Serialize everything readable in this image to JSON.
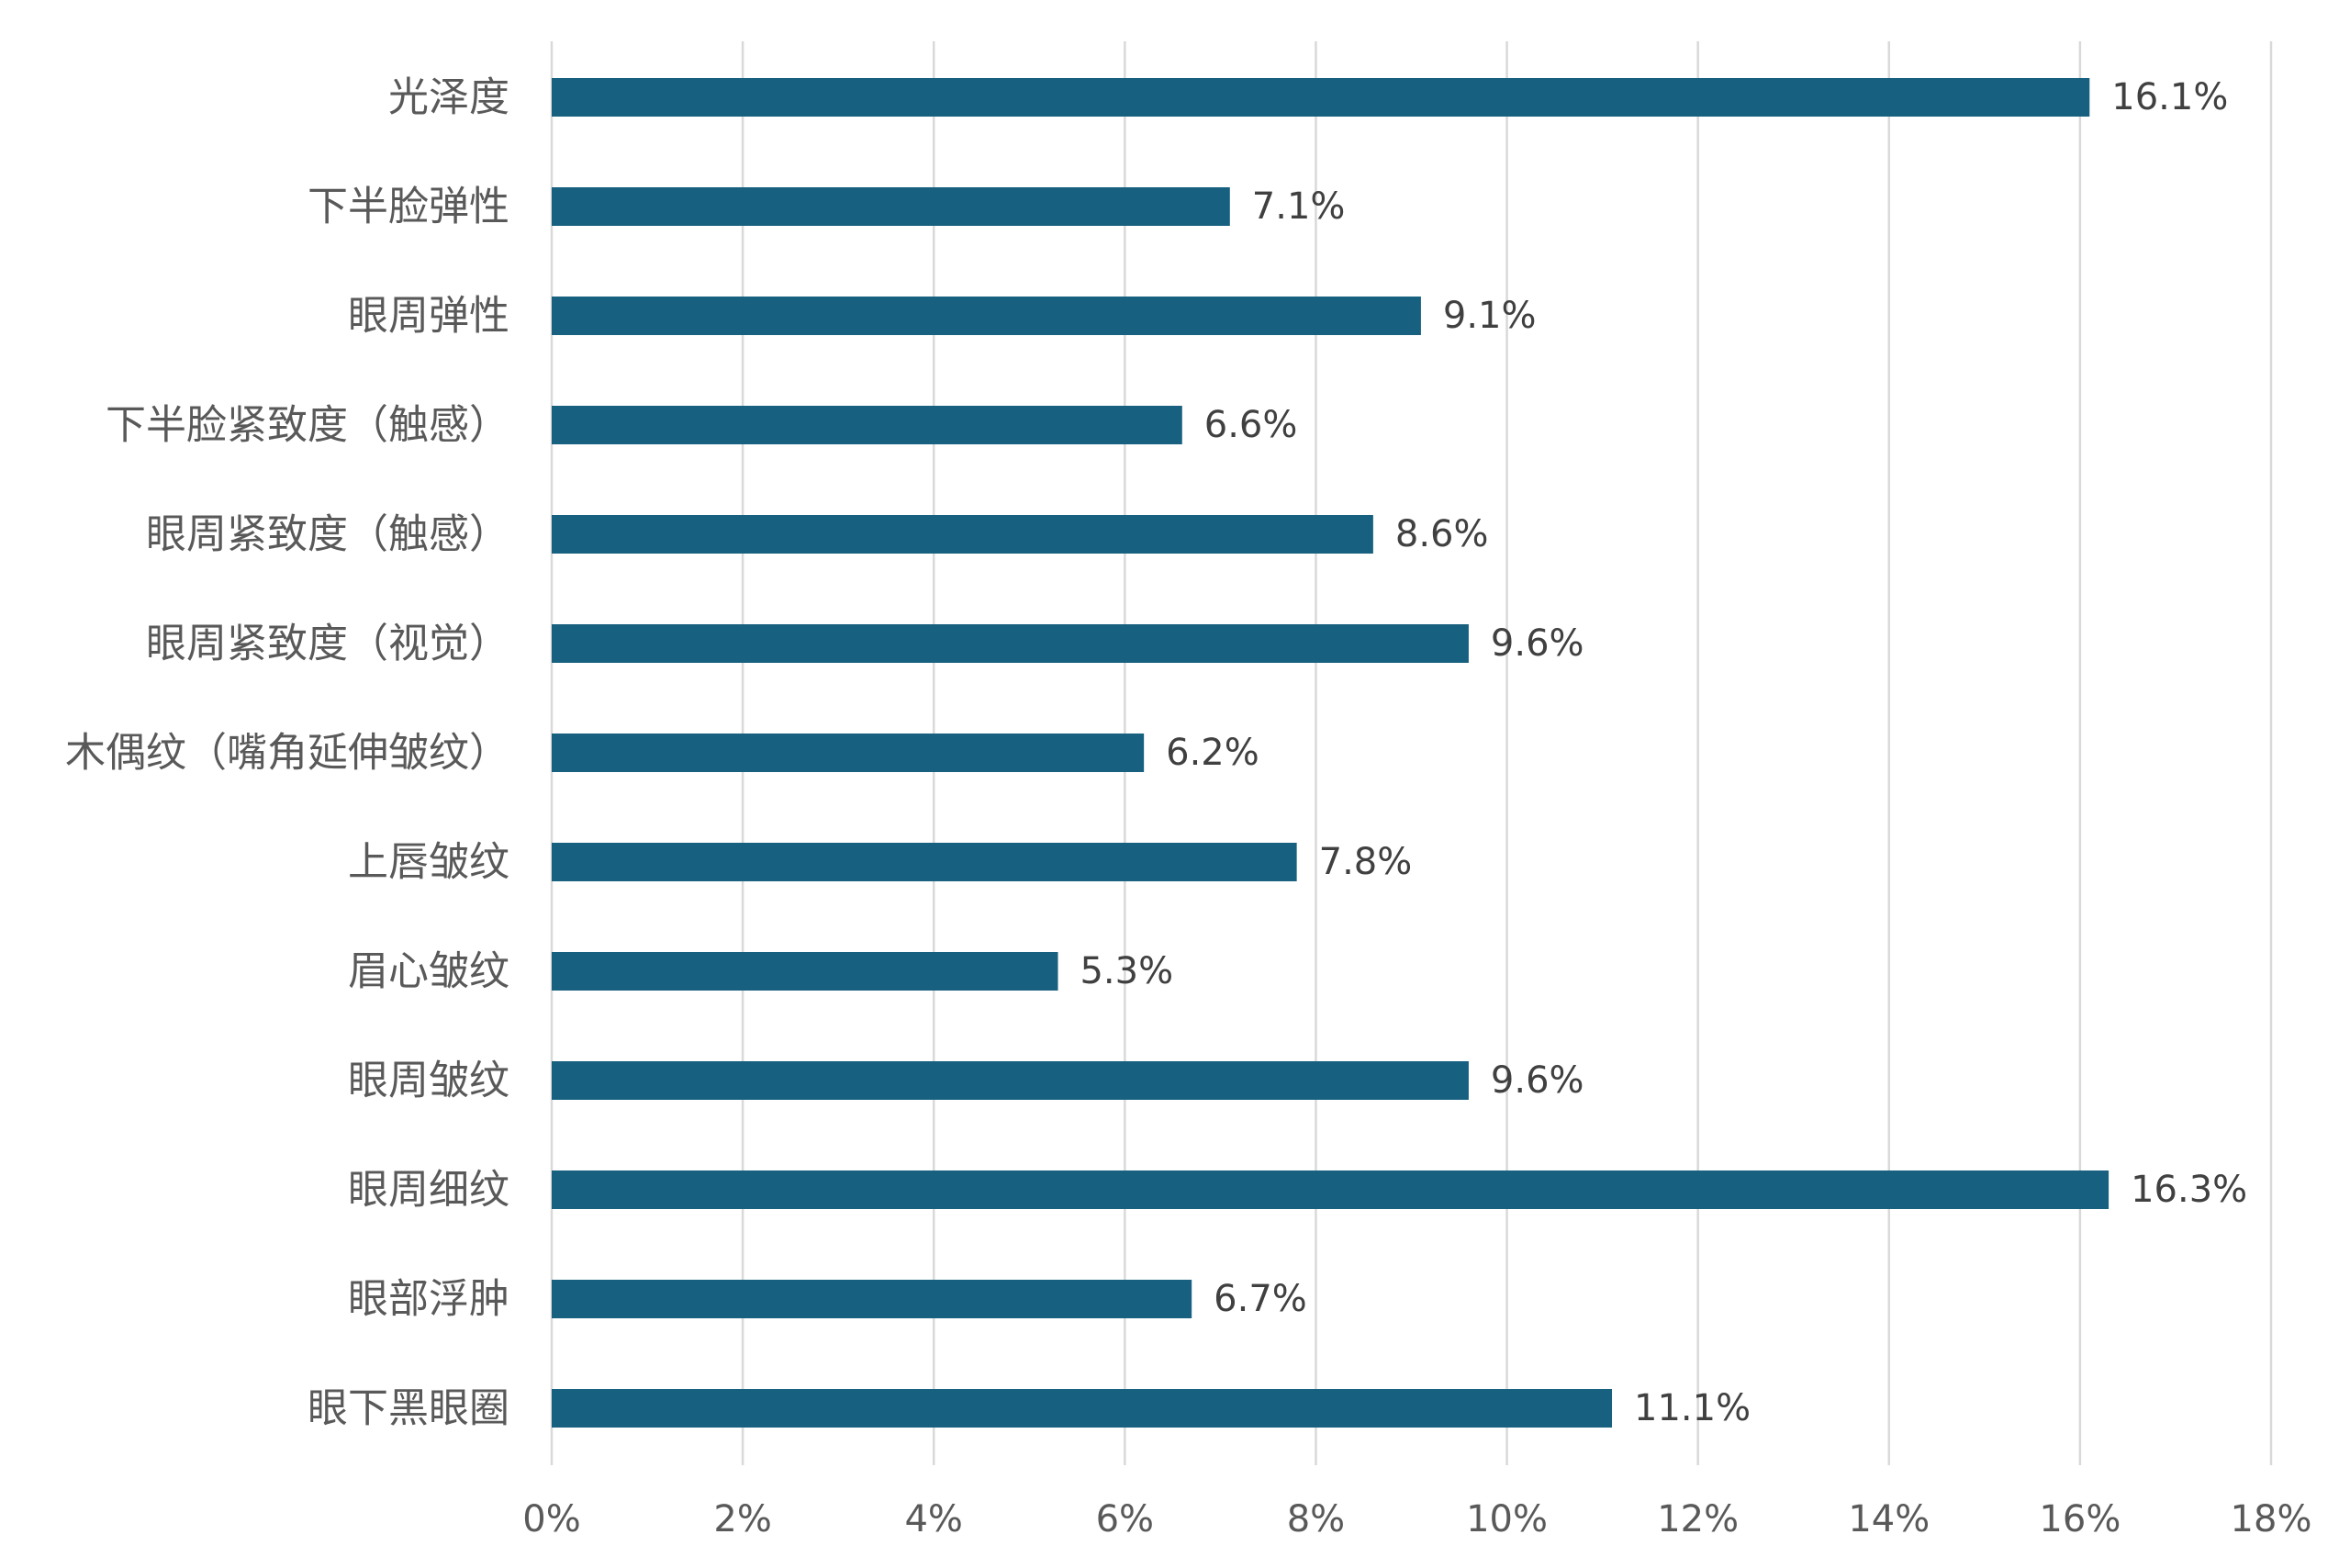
{
  "chart_data": {
    "type": "bar",
    "orientation": "horizontal",
    "categories": [
      "光泽度",
      "下半脸弹性",
      "眼周弹性",
      "下半脸紧致度（触感）",
      "眼周紧致度（触感）",
      "眼周紧致度（视觉）",
      "木偶纹（嘴角延伸皱纹）",
      "上唇皱纹",
      "眉心皱纹",
      "眼周皱纹",
      "眼周细纹",
      "眼部浮肿",
      "眼下黑眼圈"
    ],
    "values": [
      16.1,
      7.1,
      9.1,
      6.6,
      8.6,
      9.6,
      6.2,
      7.8,
      5.3,
      9.6,
      16.3,
      6.7,
      11.1
    ],
    "value_labels": [
      "16.1%",
      "7.1%",
      "9.1%",
      "6.6%",
      "8.6%",
      "9.6%",
      "6.2%",
      "7.8%",
      "5.3%",
      "9.6%",
      "16.3%",
      "6.7%",
      "11.1%"
    ],
    "xlim": [
      0,
      18
    ],
    "x_ticks": [
      0,
      2,
      4,
      6,
      8,
      10,
      12,
      14,
      16,
      18
    ],
    "x_tick_labels": [
      "0%",
      "2%",
      "4%",
      "6%",
      "8%",
      "10%",
      "12%",
      "14%",
      "16%",
      "18%"
    ],
    "title": "",
    "xlabel": "",
    "ylabel": "",
    "grid": "vertical",
    "legend": "none",
    "bar_color": "#17607f",
    "grid_color": "#d9d9d9"
  }
}
